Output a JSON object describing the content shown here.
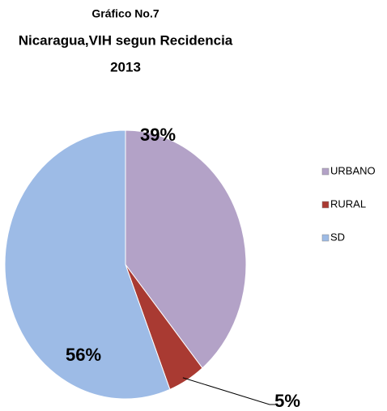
{
  "chart_data": {
    "type": "pie",
    "title_lines": [
      "Gráfico No.7",
      "Nicaragua,VIH segun Recidencia",
      "2013"
    ],
    "categories": [
      "URBANO",
      "RURAL",
      "SD"
    ],
    "values": [
      39,
      5,
      56
    ],
    "value_labels": [
      "39%",
      "5%",
      "56%"
    ],
    "colors": [
      "#b3a2c7",
      "#a93a32",
      "#9dbbe6"
    ],
    "legend": "right"
  }
}
